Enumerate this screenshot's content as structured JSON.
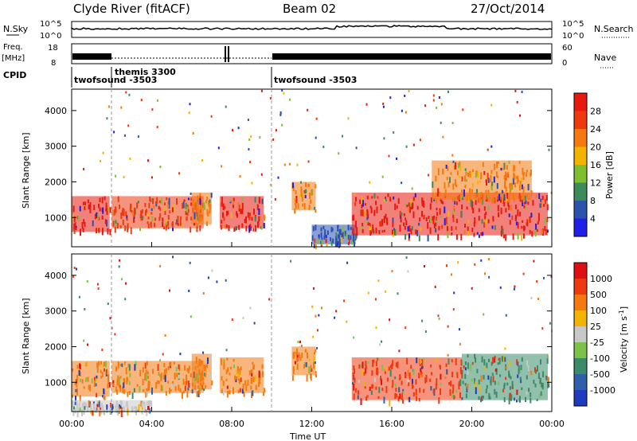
{
  "header": {
    "station": "Clyde River (fitACF)",
    "beam": "Beam 02",
    "date": "27/Oct/2014"
  },
  "top_panels": {
    "nsky_label": "N.Sky",
    "nsky_ticks": [
      "10^5",
      "10^0"
    ],
    "nsearch_label": "N.Search",
    "nsearch_ticks": [
      "10^5",
      "10^0"
    ],
    "freq_label": "Freq.",
    "freq_unit": "[MHz]",
    "freq_ticks": [
      "18",
      "8"
    ],
    "nave_label": "Nave",
    "nave_ticks": [
      "60",
      "0"
    ],
    "cpid_label": "CPID",
    "cpid_segments": [
      {
        "name": "twofsound -3503",
        "start_hour": 0
      },
      {
        "name": "themis 3300",
        "start_hour": 2.0
      },
      {
        "name": "twofsound -3503",
        "start_hour": 10.0
      }
    ]
  },
  "chart_data": [
    {
      "type": "heatmap",
      "title": "",
      "quantity": "Power",
      "xlabel": "",
      "ylabel": "Slant Range [km]",
      "xlim_hours": [
        0,
        24
      ],
      "ylim": [
        180,
        4600
      ],
      "y_ticks": [
        1000,
        2000,
        3000,
        4000
      ],
      "colorbar_label": "Power [dB]",
      "colorbar_ticks": [
        "4",
        "8",
        "12",
        "16",
        "20",
        "24",
        "28"
      ],
      "colorbar_colors": [
        "#1f1fe8",
        "#2c52b0",
        "#3d8a5a",
        "#7fbe2e",
        "#f2b400",
        "#f47a10",
        "#ef3a10",
        "#e81a10"
      ],
      "echo_regions": [
        {
          "t0": 0.0,
          "t1": 1.9,
          "r0": 600,
          "r1": 1600,
          "dominant": "#e81a10"
        },
        {
          "t0": 2.0,
          "t1": 6.6,
          "r0": 700,
          "r1": 1600,
          "dominant": "#ef3a10"
        },
        {
          "t0": 6.0,
          "t1": 7.0,
          "r0": 800,
          "r1": 1700,
          "dominant": "#f47a10"
        },
        {
          "t0": 7.4,
          "t1": 9.6,
          "r0": 700,
          "r1": 1600,
          "dominant": "#e81a10"
        },
        {
          "t0": 11.0,
          "t1": 12.2,
          "r0": 1200,
          "r1": 2000,
          "dominant": "#f47a10"
        },
        {
          "t0": 12.0,
          "t1": 14.2,
          "r0": 250,
          "r1": 800,
          "dominant": "#2c52b0"
        },
        {
          "t0": 14.0,
          "t1": 23.8,
          "r0": 500,
          "r1": 1700,
          "dominant": "#e81a10"
        },
        {
          "t0": 18.0,
          "t1": 23.0,
          "r0": 1500,
          "r1": 2600,
          "dominant": "#f47a10"
        }
      ]
    },
    {
      "type": "heatmap",
      "title": "",
      "quantity": "Velocity",
      "xlabel": "Time UT",
      "ylabel": "Slant Range [km]",
      "xlim_hours": [
        0,
        24
      ],
      "ylim": [
        180,
        4600
      ],
      "y_ticks": [
        1000,
        2000,
        3000,
        4000
      ],
      "x_ticks": [
        "00:00",
        "04:00",
        "08:00",
        "12:00",
        "16:00",
        "20:00",
        "00:00"
      ],
      "colorbar_label": "Velocity [m s",
      "colorbar_label_sup": "-1",
      "colorbar_label_end": "]",
      "colorbar_ticks": [
        "1000",
        "500",
        "100",
        "25",
        "-25",
        "-100",
        "-500",
        "-1000"
      ],
      "colorbar_colors": [
        "#1f3cc0",
        "#2f5fa8",
        "#3b8a6a",
        "#7cc24a",
        "#c8c8c8",
        "#f2b400",
        "#f47a10",
        "#ef3a10",
        "#e01010"
      ],
      "echo_regions": [
        {
          "t0": 0.0,
          "t1": 1.9,
          "r0": 600,
          "r1": 1600,
          "dominant": "#f47a10"
        },
        {
          "t0": 2.0,
          "t1": 6.6,
          "r0": 700,
          "r1": 1600,
          "dominant": "#f47a10"
        },
        {
          "t0": 6.0,
          "t1": 7.0,
          "r0": 800,
          "r1": 1800,
          "dominant": "#f47a10"
        },
        {
          "t0": 7.4,
          "t1": 9.6,
          "r0": 700,
          "r1": 1700,
          "dominant": "#f47a10"
        },
        {
          "t0": 11.0,
          "t1": 12.2,
          "r0": 1200,
          "r1": 2000,
          "dominant": "#f47a10"
        },
        {
          "t0": 14.0,
          "t1": 19.5,
          "r0": 500,
          "r1": 1700,
          "dominant": "#ef3a10"
        },
        {
          "t0": 19.5,
          "t1": 23.8,
          "r0": 500,
          "r1": 1800,
          "dominant": "#3b8a6a"
        },
        {
          "t0": 0.0,
          "t1": 4.0,
          "r0": 200,
          "r1": 500,
          "dominant": "#c8c8c8"
        }
      ]
    }
  ]
}
